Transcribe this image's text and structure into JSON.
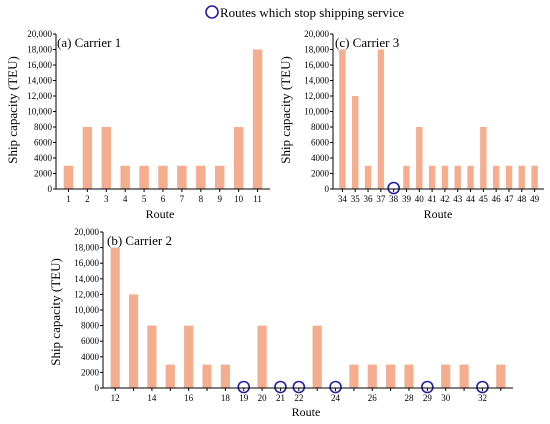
{
  "legend": {
    "label": "Routes which stop shipping service",
    "marker_color": "#1f1fa8"
  },
  "colors": {
    "bar": "#f4ae8f",
    "circle": "#1f1fa8"
  },
  "chart_data": [
    {
      "id": "a",
      "type": "bar",
      "title": "(a) Carrier 1",
      "xlabel": "Route",
      "ylabel": "Ship capacity (TEU)",
      "ylim": [
        0,
        20000
      ],
      "yticks": [
        0,
        2000,
        4000,
        6000,
        8000,
        10000,
        12000,
        14000,
        16000,
        18000,
        20000
      ],
      "ytick_labels": [
        "0",
        "2000",
        "4000",
        "6000",
        "8000",
        "10,000",
        "12,000",
        "14,000",
        "16,000",
        "18,000",
        "20,000"
      ],
      "categories": [
        "1",
        "2",
        "3",
        "4",
        "5",
        "6",
        "7",
        "8",
        "9",
        "10",
        "11"
      ],
      "values": [
        3000,
        8000,
        8000,
        3000,
        3000,
        3000,
        3000,
        3000,
        3000,
        8000,
        18000
      ],
      "stopped": [],
      "xtick_labels": [
        "1",
        "2",
        "3",
        "4",
        "5",
        "6",
        "7",
        "8",
        "9",
        "10",
        "11"
      ]
    },
    {
      "id": "c",
      "type": "bar",
      "title": "(c) Carrier 3",
      "xlabel": "Route",
      "ylabel": "Ship capacity (TEU)",
      "ylim": [
        0,
        20000
      ],
      "yticks": [
        0,
        2000,
        4000,
        6000,
        8000,
        10000,
        12000,
        14000,
        16000,
        18000,
        20000
      ],
      "ytick_labels": [
        "0",
        "2000",
        "4000",
        "6000",
        "8000",
        "10,000",
        "12,000",
        "14,000",
        "16,000",
        "18,000",
        "20,000"
      ],
      "categories": [
        "34",
        "35",
        "36",
        "37",
        "38",
        "39",
        "40",
        "41",
        "42",
        "43",
        "44",
        "45",
        "46",
        "47",
        "48",
        "49"
      ],
      "values": [
        18000,
        12000,
        3000,
        18000,
        0,
        3000,
        8000,
        3000,
        3000,
        3000,
        3000,
        8000,
        3000,
        3000,
        3000,
        3000
      ],
      "stopped": [
        "38"
      ],
      "xtick_labels": [
        "34",
        "35",
        "36",
        "37",
        "38",
        "39",
        "40",
        "41",
        "42",
        "43",
        "44",
        "45",
        "46",
        "47",
        "48",
        "49"
      ]
    },
    {
      "id": "b",
      "type": "bar",
      "title": "(b) Carrier 2",
      "xlabel": "Route",
      "ylabel": "Ship capacity (TEU)",
      "ylim": [
        0,
        20000
      ],
      "yticks": [
        0,
        2000,
        4000,
        6000,
        8000,
        10000,
        12000,
        14000,
        16000,
        18000,
        20000
      ],
      "ytick_labels": [
        "0",
        "2000",
        "4000",
        "6000",
        "8000",
        "10,000",
        "12,000",
        "14,000",
        "16,000",
        "18,000",
        "20,000"
      ],
      "categories": [
        "12",
        "13",
        "14",
        "15",
        "16",
        "17",
        "18",
        "19",
        "20",
        "21",
        "22",
        "23",
        "24",
        "25",
        "26",
        "27",
        "28",
        "29",
        "30",
        "31",
        "32",
        "33"
      ],
      "values": [
        18000,
        12000,
        8000,
        3000,
        8000,
        3000,
        3000,
        0,
        8000,
        0,
        0,
        8000,
        0,
        3000,
        3000,
        3000,
        3000,
        0,
        3000,
        3000,
        0,
        3000
      ],
      "stopped": [
        "19",
        "21",
        "22",
        "24",
        "29",
        "32"
      ],
      "xtick_labels": [
        "12",
        "",
        "14",
        "",
        "16",
        "",
        "18",
        "19",
        "20",
        "21",
        "22",
        "",
        "24",
        "",
        "26",
        "",
        "28",
        "29",
        "30",
        "",
        "32",
        ""
      ]
    }
  ]
}
